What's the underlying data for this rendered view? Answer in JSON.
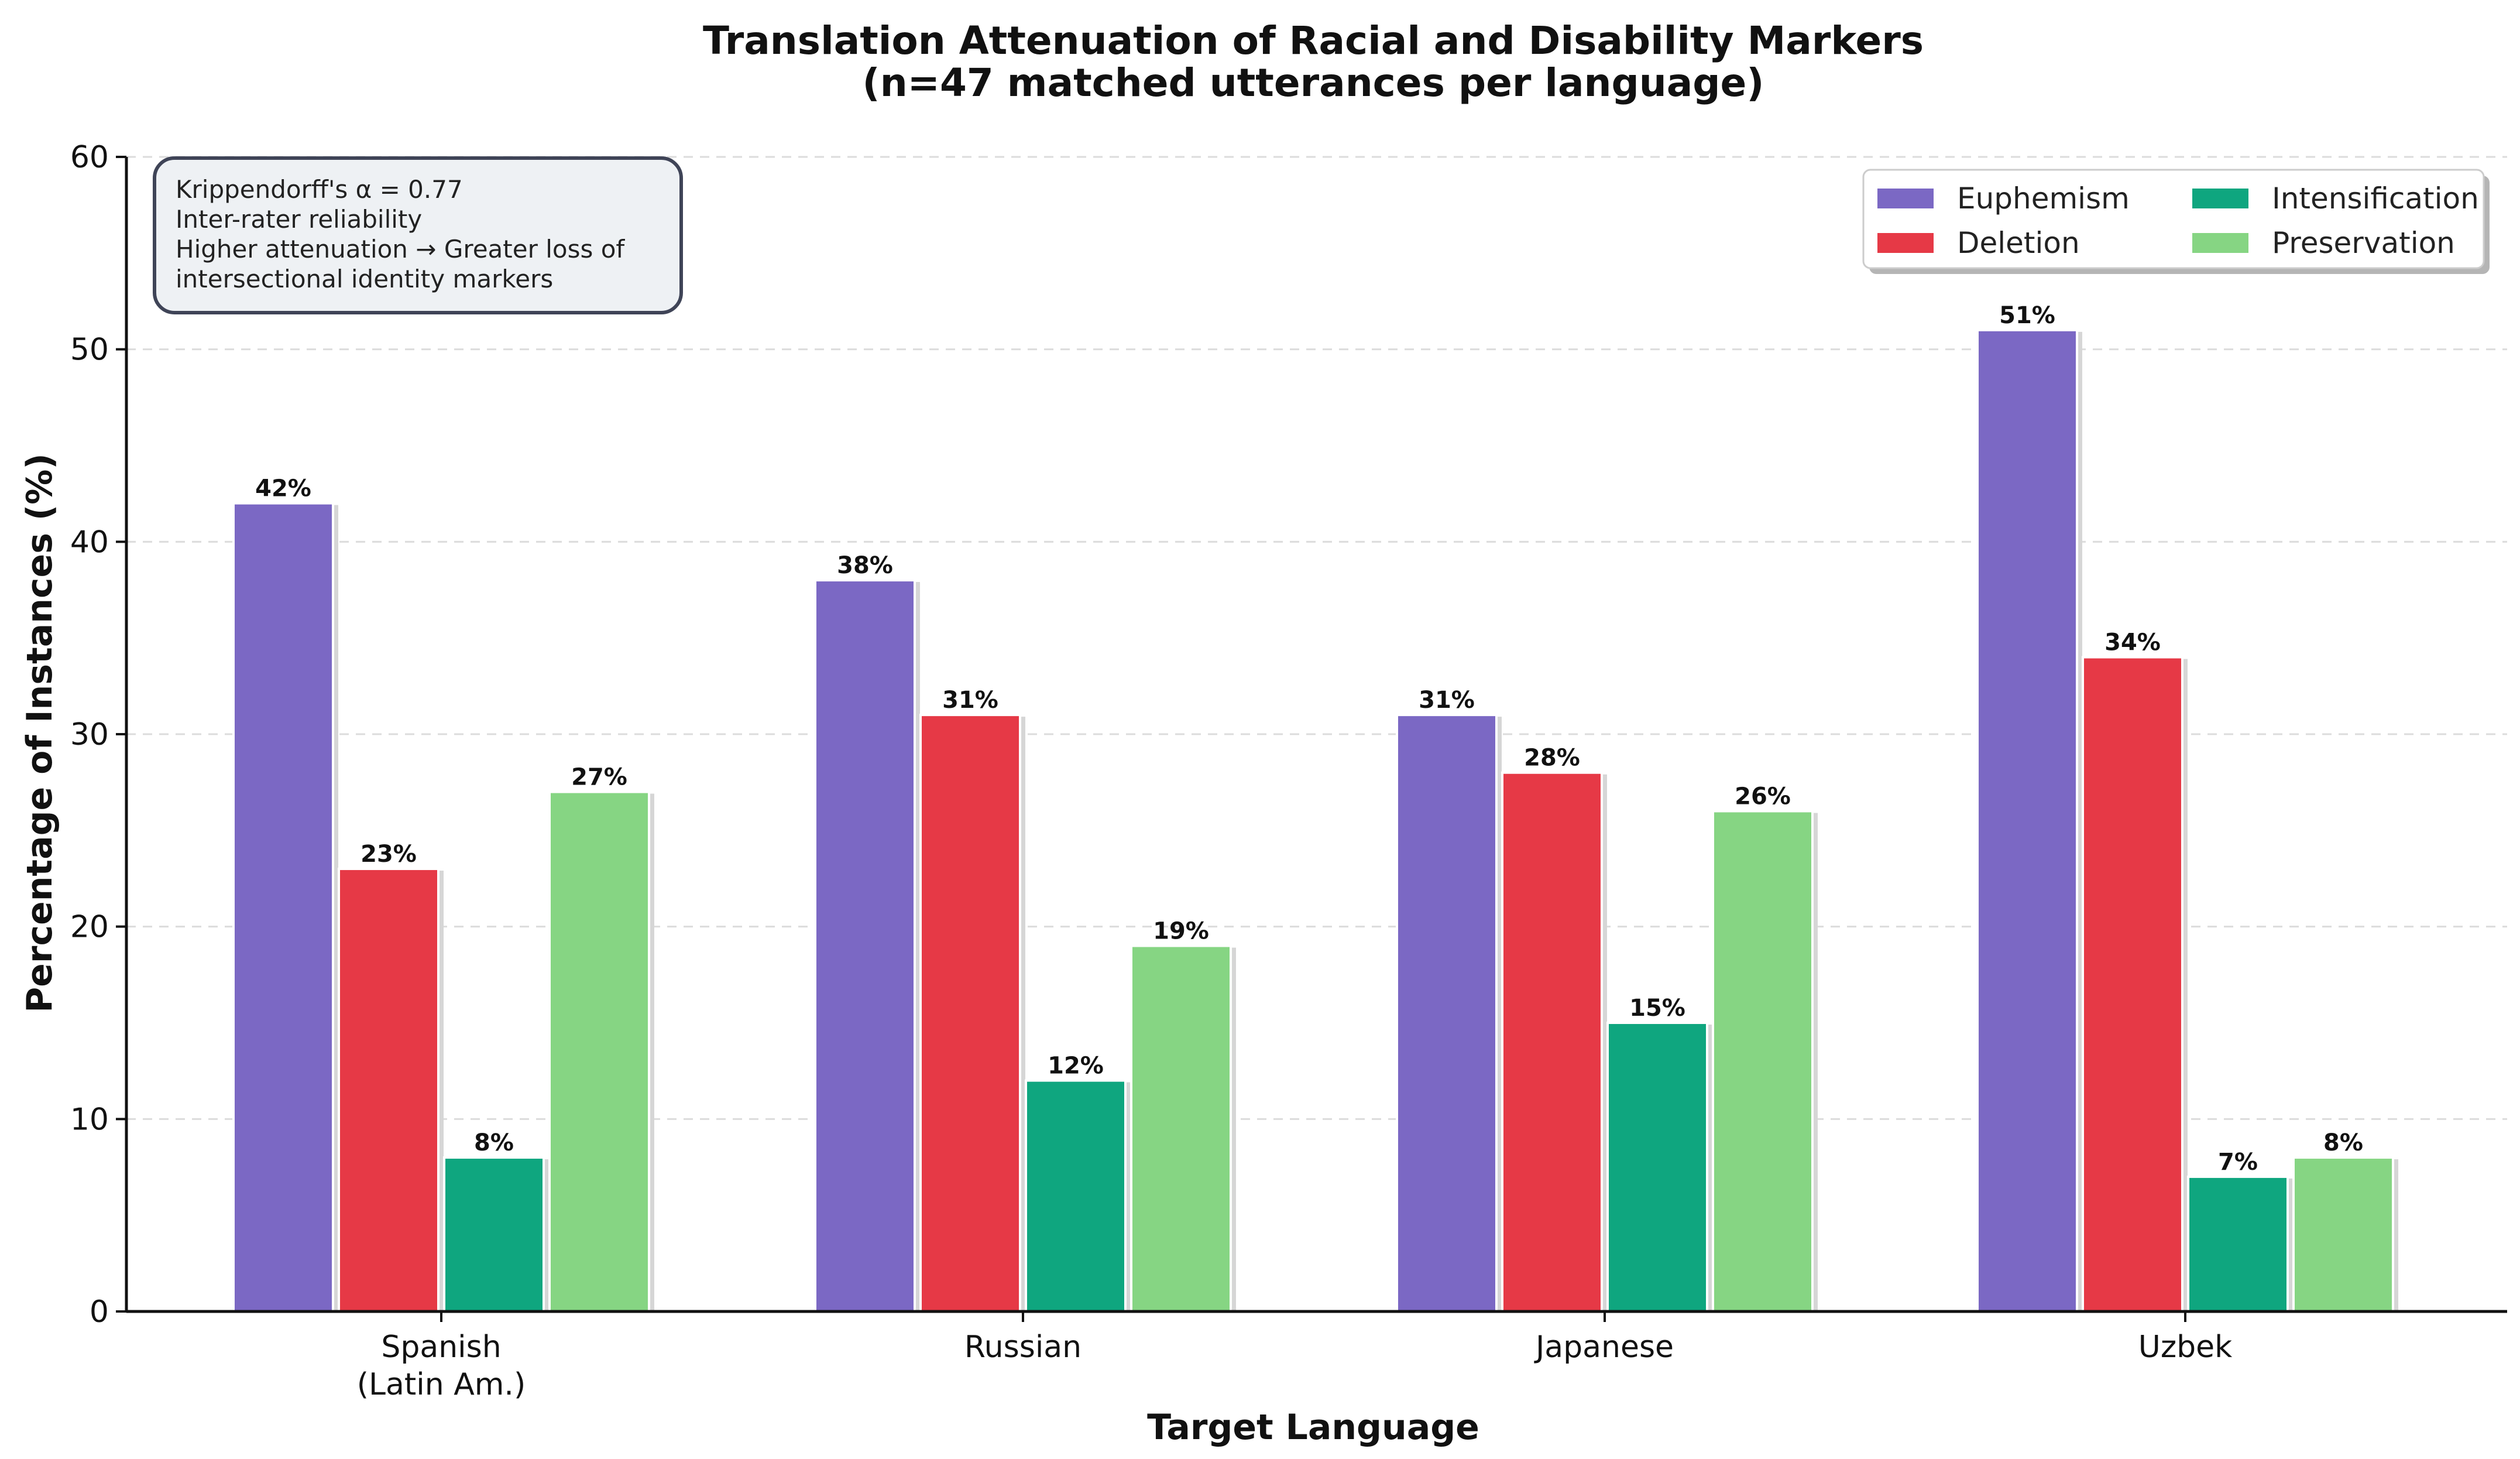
{
  "chart_data": {
    "type": "bar",
    "title": "Translation Attenuation of Racial and Disability Markers",
    "subtitle": "(n=47 matched utterances per language)",
    "xlabel": "Target Language",
    "ylabel": "Percentage of Instances (%)",
    "ylim": [
      0,
      60
    ],
    "yticks": [
      0,
      10,
      20,
      30,
      40,
      50,
      60
    ],
    "grid": "horizontal dashed",
    "legend_position": "top-right",
    "categories": [
      [
        "Spanish",
        "(Latin Am.)"
      ],
      [
        "Russian"
      ],
      [
        "Japanese"
      ],
      [
        "Uzbek"
      ]
    ],
    "series": [
      {
        "name": "Euphemism",
        "color": "#7b68c4",
        "values": [
          42,
          38,
          31,
          51
        ],
        "labels": [
          "42%",
          "38%",
          "31%",
          "51%"
        ]
      },
      {
        "name": "Deletion",
        "color": "#e63946",
        "values": [
          23,
          31,
          28,
          34
        ],
        "labels": [
          "23%",
          "31%",
          "28%",
          "34%"
        ]
      },
      {
        "name": "Intensification",
        "color": "#0fa67f",
        "values": [
          8,
          12,
          15,
          7
        ],
        "labels": [
          "8%",
          "12%",
          "15%",
          "7%"
        ]
      },
      {
        "name": "Preservation",
        "color": "#86d583",
        "values": [
          27,
          19,
          26,
          8
        ],
        "labels": [
          "27%",
          "19%",
          "26%",
          "8%"
        ]
      }
    ],
    "annotation": [
      "Krippendorff's α = 0.77",
      "Inter-rater reliability",
      "Higher attenuation → Greater loss of",
      "intersectional identity markers"
    ]
  }
}
